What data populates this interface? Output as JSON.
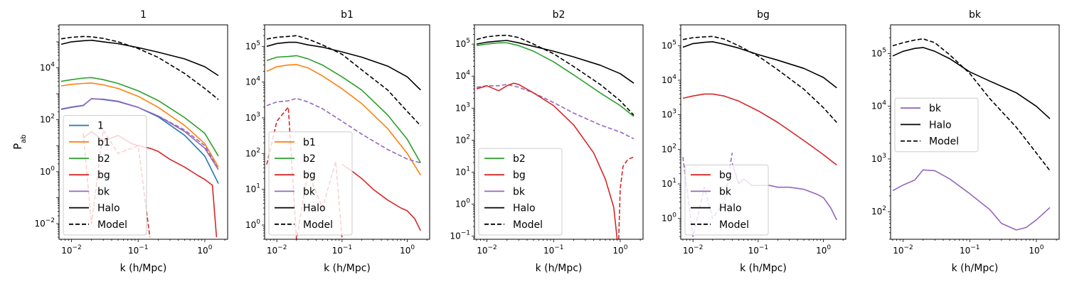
{
  "figure": {
    "ylabel_main": "P",
    "ylabel_sub": "ab",
    "xlabel": "k (h/Mpc)"
  },
  "colors": {
    "1": "#1f77b4",
    "b1": "#ff7f0e",
    "b2": "#2ca02c",
    "bg": "#d62728",
    "bk": "#9467bd",
    "Halo": "#000000",
    "Model": "#000000"
  },
  "chart_data": [
    {
      "type": "line",
      "title": "1",
      "xlabel": "k (h/Mpc)",
      "ylabel": "P_ab",
      "xscale": "log",
      "yscale": "log",
      "xlim": [
        0.0065,
        2.2
      ],
      "ylim": [
        0.0025,
        450000.0
      ],
      "xticks": [
        "10^-2",
        "10^-1",
        "10^0"
      ],
      "yticks": [
        "10^-2",
        "10^0",
        "10^2",
        "10^4"
      ],
      "legend": {
        "placement": "lower-left",
        "entries": [
          "1",
          "b1",
          "b2",
          "bg",
          "bk",
          "Halo",
          "Model"
        ]
      },
      "series": [
        {
          "name": "Halo",
          "style": "solid",
          "x": [
            0.007,
            0.01,
            0.015,
            0.02,
            0.03,
            0.05,
            0.1,
            0.2,
            0.5,
            1.0,
            1.6
          ],
          "y": [
            80000,
            100000,
            110000,
            115000,
            100000,
            85000,
            60000,
            40000,
            22000,
            11000,
            5000
          ]
        },
        {
          "name": "Model",
          "style": "dashed",
          "x": [
            0.007,
            0.01,
            0.015,
            0.02,
            0.03,
            0.05,
            0.1,
            0.2,
            0.5,
            1.0,
            1.6
          ],
          "y": [
            130000,
            150000,
            160000,
            155000,
            135000,
            100000,
            55000,
            25000,
            6000,
            1600,
            600
          ]
        },
        {
          "name": "b2",
          "style": "solid",
          "x": [
            0.007,
            0.01,
            0.015,
            0.02,
            0.03,
            0.05,
            0.1,
            0.2,
            0.5,
            1.0,
            1.6
          ],
          "y": [
            3000,
            3500,
            4000,
            4200,
            3500,
            2500,
            1300,
            550,
            120,
            30,
            4
          ]
        },
        {
          "name": "b1",
          "style": "solid",
          "x": [
            0.007,
            0.01,
            0.015,
            0.02,
            0.03,
            0.05,
            0.1,
            0.2,
            0.5,
            1.0,
            1.6
          ],
          "y": [
            2000,
            2300,
            2500,
            2600,
            2200,
            1600,
            800,
            300,
            60,
            12,
            1.5
          ]
        },
        {
          "name": "1",
          "style": "solid",
          "x": [
            0.007,
            0.01,
            0.015,
            0.02,
            0.03,
            0.05,
            0.1,
            0.2,
            0.5,
            1.0,
            1.6
          ],
          "y": [
            250,
            300,
            350,
            650,
            600,
            500,
            300,
            130,
            25,
            4,
            0.35
          ]
        },
        {
          "name": "bk",
          "style": "solid",
          "x": [
            0.007,
            0.01,
            0.015,
            0.02,
            0.03,
            0.05,
            0.1,
            0.2,
            0.5,
            1.0,
            1.6
          ],
          "y": [
            260,
            310,
            360,
            640,
            620,
            520,
            300,
            140,
            35,
            8,
            1.2
          ]
        },
        {
          "name": "bk",
          "style": "dashed",
          "x": [
            0.2,
            0.5,
            1.0,
            1.6
          ],
          "y": [
            140,
            40,
            10,
            1.2
          ]
        },
        {
          "name": "bg",
          "style": "solid",
          "x": [
            0.015,
            0.02,
            0.03,
            0.05,
            0.08,
            0.1,
            0.15,
            0.2,
            0.3,
            0.5,
            0.8,
            1.0,
            1.3,
            1.5
          ],
          "y": [
            20,
            35,
            15,
            25,
            12,
            10,
            8,
            6,
            3,
            1.5,
            0.7,
            0.5,
            0.3,
            0.003
          ]
        },
        {
          "name": "bg",
          "style": "dashed",
          "x": [
            0.015,
            0.02,
            0.03,
            0.05,
            0.1,
            0.15
          ],
          "y": [
            30,
            0.01,
            40,
            5,
            10,
            0.003
          ]
        }
      ]
    },
    {
      "type": "line",
      "title": "b1",
      "xlabel": "k (h/Mpc)",
      "xscale": "log",
      "yscale": "log",
      "xlim": [
        0.0065,
        2.2
      ],
      "ylim": [
        0.4,
        400000.0
      ],
      "xticks": [
        "10^-2",
        "10^-1",
        "10^0"
      ],
      "yticks": [
        "10^0",
        "10^1",
        "10^2",
        "10^3",
        "10^4",
        "10^5"
      ],
      "legend": {
        "placement": "lower-left",
        "entries": [
          "b1",
          "b2",
          "bg",
          "bk",
          "Halo",
          "Model"
        ]
      },
      "series": [
        {
          "name": "Halo",
          "style": "solid",
          "x": [
            0.007,
            0.01,
            0.015,
            0.02,
            0.03,
            0.05,
            0.1,
            0.2,
            0.5,
            1.0,
            1.6
          ],
          "y": [
            100000,
            120000,
            130000,
            130000,
            110000,
            95000,
            70000,
            50000,
            28000,
            14000,
            6000
          ]
        },
        {
          "name": "Model",
          "style": "dashed",
          "x": [
            0.007,
            0.01,
            0.015,
            0.02,
            0.03,
            0.05,
            0.1,
            0.2,
            0.5,
            1.0,
            1.6
          ],
          "y": [
            160000,
            180000,
            190000,
            200000,
            160000,
            110000,
            60000,
            22000,
            6000,
            1500,
            600
          ]
        },
        {
          "name": "b2",
          "style": "solid",
          "x": [
            0.007,
            0.01,
            0.015,
            0.02,
            0.03,
            0.05,
            0.1,
            0.2,
            0.5,
            1.0,
            1.6
          ],
          "y": [
            40000,
            50000,
            52000,
            55000,
            45000,
            30000,
            14000,
            6000,
            1200,
            250,
            55
          ]
        },
        {
          "name": "b1",
          "style": "solid",
          "x": [
            0.007,
            0.01,
            0.015,
            0.02,
            0.03,
            0.05,
            0.1,
            0.2,
            0.5,
            1.0,
            1.6
          ],
          "y": [
            20000,
            27000,
            30000,
            31000,
            25000,
            15000,
            6500,
            2500,
            500,
            100,
            25
          ]
        },
        {
          "name": "bk",
          "style": "dashed",
          "x": [
            0.007,
            0.01,
            0.015,
            0.02,
            0.03,
            0.05,
            0.1,
            0.2,
            0.5,
            1.0,
            1.6
          ],
          "y": [
            2200,
            2800,
            3000,
            3500,
            2800,
            1800,
            800,
            350,
            130,
            70,
            55
          ]
        },
        {
          "name": "bg",
          "style": "solid",
          "x": [
            0.1,
            0.15,
            0.2,
            0.3,
            0.5,
            0.8,
            1.0,
            1.3,
            1.6
          ],
          "y": [
            50,
            30,
            20,
            10,
            5,
            3,
            2.5,
            1.5,
            0.7
          ]
        },
        {
          "name": "bg",
          "style": "dashed",
          "x": [
            0.007,
            0.01,
            0.015,
            0.02,
            0.03,
            0.05,
            0.08,
            0.1
          ],
          "y": [
            50,
            800,
            2000,
            0.4,
            30,
            3,
            60,
            0.4
          ]
        }
      ]
    },
    {
      "type": "line",
      "title": "b2",
      "xlabel": "k (h/Mpc)",
      "xscale": "log",
      "yscale": "log",
      "xlim": [
        0.0065,
        2.2
      ],
      "ylim": [
        0.08,
        400000.0
      ],
      "xticks": [
        "10^-2",
        "10^-1",
        "10^0"
      ],
      "yticks": [
        "10^-1",
        "10^0",
        "10^1",
        "10^2",
        "10^3",
        "10^4",
        "10^5"
      ],
      "legend": {
        "placement": "lower-left",
        "entries": [
          "b2",
          "bg",
          "bk",
          "Halo",
          "Model"
        ]
      },
      "series": [
        {
          "name": "Halo",
          "style": "solid",
          "x": [
            0.007,
            0.01,
            0.015,
            0.02,
            0.03,
            0.05,
            0.1,
            0.2,
            0.5,
            1.0,
            1.6
          ],
          "y": [
            100000,
            115000,
            125000,
            130000,
            110000,
            85000,
            60000,
            40000,
            22000,
            12000,
            6000
          ]
        },
        {
          "name": "Model",
          "style": "dashed",
          "x": [
            0.007,
            0.01,
            0.015,
            0.02,
            0.03,
            0.05,
            0.1,
            0.2,
            0.5,
            1.0,
            1.6
          ],
          "y": [
            140000,
            170000,
            185000,
            190000,
            160000,
            100000,
            50000,
            20000,
            5500,
            1700,
            600
          ]
        },
        {
          "name": "b2",
          "style": "solid",
          "x": [
            0.007,
            0.01,
            0.015,
            0.02,
            0.03,
            0.05,
            0.1,
            0.2,
            0.5,
            1.0,
            1.6
          ],
          "y": [
            90000,
            100000,
            110000,
            110000,
            90000,
            60000,
            28000,
            11000,
            3000,
            1200,
            550
          ]
        },
        {
          "name": "bk",
          "style": "dashed",
          "x": [
            0.007,
            0.01,
            0.015,
            0.02,
            0.03,
            0.05,
            0.1,
            0.2,
            0.5,
            1.0,
            1.6
          ],
          "y": [
            4500,
            5000,
            5000,
            5500,
            4500,
            3000,
            1500,
            700,
            300,
            180,
            110
          ]
        },
        {
          "name": "bg",
          "style": "solid",
          "x": [
            0.007,
            0.01,
            0.015,
            0.02,
            0.025,
            0.03,
            0.05,
            0.1,
            0.2,
            0.4,
            0.6,
            0.8,
            0.9
          ],
          "y": [
            4000,
            5000,
            3500,
            5000,
            6000,
            5500,
            3000,
            1200,
            300,
            40,
            6,
            0.8,
            0.08
          ]
        },
        {
          "name": "bg",
          "style": "dashed",
          "x": [
            0.95,
            1.0,
            1.1,
            1.3,
            1.6
          ],
          "y": [
            0.08,
            3,
            15,
            25,
            30
          ]
        }
      ]
    },
    {
      "type": "line",
      "title": "bg",
      "xlabel": "k (h/Mpc)",
      "xscale": "log",
      "yscale": "log",
      "xlim": [
        0.0065,
        2.2
      ],
      "ylim": [
        0.25,
        400000.0
      ],
      "xticks": [
        "10^-2",
        "10^-1",
        "10^0"
      ],
      "yticks": [
        "10^0",
        "10^1",
        "10^2",
        "10^3",
        "10^4",
        "10^5"
      ],
      "legend": {
        "placement": "lower-left",
        "entries": [
          "bg",
          "bk",
          "Halo",
          "Model"
        ]
      },
      "series": [
        {
          "name": "Halo",
          "style": "solid",
          "x": [
            0.007,
            0.01,
            0.015,
            0.02,
            0.03,
            0.05,
            0.1,
            0.2,
            0.5,
            1.0,
            1.6
          ],
          "y": [
            90000,
            115000,
            125000,
            130000,
            110000,
            85000,
            55000,
            38000,
            22000,
            12000,
            6000
          ]
        },
        {
          "name": "Model",
          "style": "dashed",
          "x": [
            0.007,
            0.01,
            0.015,
            0.02,
            0.03,
            0.05,
            0.1,
            0.2,
            0.5,
            1.0,
            1.6
          ],
          "y": [
            150000,
            170000,
            180000,
            185000,
            155000,
            100000,
            50000,
            20000,
            5500,
            1600,
            600
          ]
        },
        {
          "name": "bg",
          "style": "solid",
          "x": [
            0.007,
            0.01,
            0.015,
            0.02,
            0.03,
            0.05,
            0.1,
            0.2,
            0.5,
            1.0,
            1.6
          ],
          "y": [
            3000,
            3500,
            4000,
            4000,
            3500,
            2500,
            1300,
            600,
            180,
            70,
            35
          ]
        },
        {
          "name": "bk",
          "style": "solid",
          "x": [
            0.04,
            0.05,
            0.06,
            0.08,
            0.1,
            0.15,
            0.2,
            0.3,
            0.5,
            0.8,
            1.0,
            1.3,
            1.6
          ],
          "y": [
            40,
            10,
            14,
            9,
            9,
            9,
            8,
            8,
            7,
            5,
            4,
            2,
            0.9
          ]
        },
        {
          "name": "bk",
          "style": "dashed",
          "x": [
            0.007,
            0.01,
            0.015,
            0.02,
            0.03,
            0.04
          ],
          "y": [
            60,
            0.3,
            8,
            1,
            3,
            80
          ]
        }
      ]
    },
    {
      "type": "line",
      "title": "bk",
      "xlabel": "k (h/Mpc)",
      "xscale": "log",
      "yscale": "log",
      "xlim": [
        0.0065,
        2.2
      ],
      "ylim": [
        30,
        350000.0
      ],
      "xticks": [
        "10^-2",
        "10^-1",
        "10^0"
      ],
      "yticks": [
        "10^2",
        "10^3",
        "10^4",
        "10^5"
      ],
      "legend": {
        "placement": "center-left",
        "entries": [
          "bk",
          "Halo",
          "Model"
        ]
      },
      "series": [
        {
          "name": "Halo",
          "style": "solid",
          "x": [
            0.007,
            0.01,
            0.015,
            0.02,
            0.03,
            0.05,
            0.1,
            0.2,
            0.5,
            1.0,
            1.6
          ],
          "y": [
            90000,
            110000,
            125000,
            130000,
            110000,
            80000,
            45000,
            30000,
            18000,
            10000,
            5800
          ]
        },
        {
          "name": "Model",
          "style": "dashed",
          "x": [
            0.007,
            0.01,
            0.015,
            0.02,
            0.03,
            0.05,
            0.1,
            0.2,
            0.5,
            1.0,
            1.6
          ],
          "y": [
            140000,
            160000,
            180000,
            190000,
            160000,
            95000,
            42000,
            14000,
            4000,
            1300,
            600
          ]
        },
        {
          "name": "bk",
          "style": "solid",
          "x": [
            0.007,
            0.01,
            0.015,
            0.02,
            0.03,
            0.05,
            0.1,
            0.2,
            0.3,
            0.5,
            0.7,
            1.0,
            1.6
          ],
          "y": [
            250,
            320,
            400,
            620,
            600,
            420,
            220,
            110,
            60,
            45,
            50,
            70,
            120
          ]
        }
      ]
    }
  ]
}
